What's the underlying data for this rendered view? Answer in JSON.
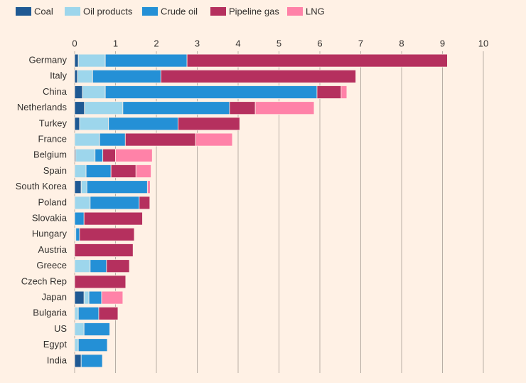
{
  "chart_data": {
    "type": "stacked-bar",
    "orientation": "horizontal",
    "categories": [
      "Germany",
      "Italy",
      "China",
      "Netherlands",
      "Turkey",
      "France",
      "Belgium",
      "Spain",
      "South Korea",
      "Poland",
      "Slovakia",
      "Hungary",
      "Austria",
      "Greece",
      "Czech Rep",
      "Japan",
      "Bulgaria",
      "US",
      "Egypt",
      "India"
    ],
    "series": [
      {
        "name": "Coal",
        "color": "#1f5993",
        "values": [
          0.09,
          0.07,
          0.19,
          0.24,
          0.12,
          0,
          0.03,
          0,
          0.16,
          0,
          0,
          0,
          0,
          0,
          0,
          0.23,
          0,
          0,
          0,
          0.16
        ]
      },
      {
        "name": "Oil products",
        "color": "#9dd6ec",
        "values": [
          0.66,
          0.37,
          0.56,
          0.94,
          0.71,
          0.61,
          0.47,
          0.28,
          0.14,
          0.38,
          0,
          0.03,
          0,
          0.38,
          0,
          0.12,
          0.09,
          0.23,
          0.09,
          0
        ]
      },
      {
        "name": "Crude oil",
        "color": "#2490d6",
        "values": [
          2.0,
          1.67,
          5.18,
          2.61,
          1.7,
          0.63,
          0.19,
          0.61,
          1.48,
          1.2,
          0.23,
          0.09,
          0,
          0.4,
          0,
          0.31,
          0.5,
          0.63,
          0.71,
          0.52
        ]
      },
      {
        "name": "Pipeline gas",
        "color": "#b5305e",
        "values": [
          6.37,
          4.77,
          0.59,
          0.63,
          1.51,
          1.72,
          0.31,
          0.61,
          0,
          0.26,
          1.43,
          1.34,
          1.43,
          0.56,
          1.25,
          0,
          0.47,
          0,
          0,
          0
        ]
      },
      {
        "name": "LNG",
        "color": "#ff82a8",
        "values": [
          0,
          0,
          0.14,
          1.44,
          0,
          0.9,
          0.9,
          0.37,
          0.07,
          0,
          0,
          0,
          0,
          0,
          0,
          0.52,
          0,
          0,
          0,
          0
        ]
      }
    ],
    "xlim": [
      0,
      10
    ],
    "xticks": [
      0,
      1,
      2,
      3,
      4,
      5,
      6,
      7,
      8,
      9,
      10
    ],
    "grid": true
  }
}
